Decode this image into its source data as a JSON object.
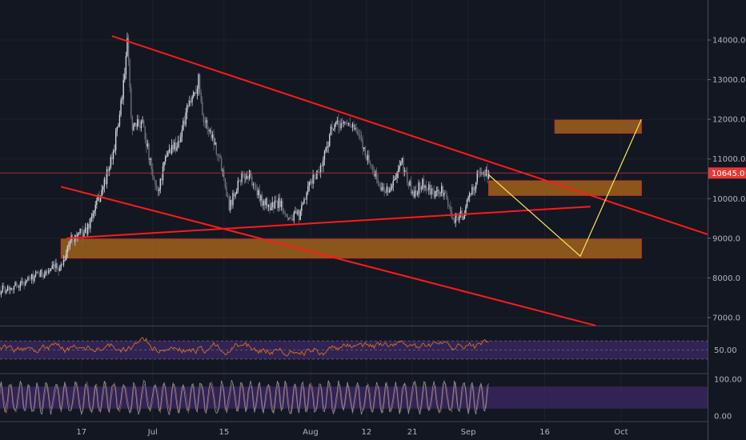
{
  "chart_data": {
    "type": "candlestick",
    "symbol_title": "",
    "colors": {
      "background": "#131722",
      "grid": "#1e222d",
      "candle_up": "#d1d4dc",
      "candle_down": "#6b6f7a",
      "trendline": "#ff1a1a",
      "projection": "#f5e663",
      "zone_fill": "#a0621a",
      "zone_border": "#c0392b",
      "price_line": "#b23b3b",
      "price_tag": "#e53935",
      "rsi_line": "#d86d20",
      "rsi_band": "#3c2a66",
      "stoch_line": "#8e8fb0",
      "stoch_band": "#3c2a66"
    },
    "main_pane": {
      "y_range": [
        6800,
        14700
      ],
      "y_ticks": [
        {
          "value": 7000,
          "label": "7000.0"
        },
        {
          "value": 8000,
          "label": "8000.0"
        },
        {
          "value": 9000,
          "label": "9000.0"
        },
        {
          "value": 10000,
          "label": "10000.0"
        },
        {
          "value": 11000,
          "label": "11000.0"
        },
        {
          "value": 12000,
          "label": "12000.0"
        },
        {
          "value": 13000,
          "label": "13000.0"
        },
        {
          "value": 14000,
          "label": "14000.0"
        }
      ],
      "current_price": {
        "value": 10645,
        "label": "10645.0"
      },
      "zones": [
        {
          "x_start": "2019-09-18",
          "x_end": "2019-10-05",
          "y_low": 11650,
          "y_high": 11980
        },
        {
          "x_start": "2019-09-05",
          "x_end": "2019-10-05",
          "y_low": 10080,
          "y_high": 10450
        },
        {
          "x_start": "2019-06-13",
          "x_end": "2019-10-05",
          "y_low": 8500,
          "y_high": 8980
        }
      ],
      "trendlines": [
        {
          "x1": "2019-06-23",
          "y1": 14100,
          "x2": "2019-10-18",
          "y2": 9100
        },
        {
          "x1": "2019-06-14",
          "y1": 9000,
          "x2": "2019-09-25",
          "y2": 9800
        },
        {
          "x1": "2019-06-13",
          "y1": 10300,
          "x2": "2019-09-26",
          "y2": 6800
        }
      ],
      "projection_path": [
        {
          "x": "2019-09-05",
          "y": 10600
        },
        {
          "x": "2019-09-23",
          "y": 8550
        },
        {
          "x": "2019-10-05",
          "y": 12000
        }
      ],
      "price_path": [
        {
          "x": "2019-06-01",
          "y": 7700
        },
        {
          "x": "2019-06-05",
          "y": 7850
        },
        {
          "x": "2019-06-09",
          "y": 8100
        },
        {
          "x": "2019-06-13",
          "y": 8300
        },
        {
          "x": "2019-06-15",
          "y": 9000
        },
        {
          "x": "2019-06-18",
          "y": 9200
        },
        {
          "x": "2019-06-21",
          "y": 10200
        },
        {
          "x": "2019-06-23",
          "y": 11000
        },
        {
          "x": "2019-06-25",
          "y": 12500
        },
        {
          "x": "2019-06-26",
          "y": 13900
        },
        {
          "x": "2019-06-27",
          "y": 11700
        },
        {
          "x": "2019-06-29",
          "y": 12000
        },
        {
          "x": "2019-07-01",
          "y": 10500
        },
        {
          "x": "2019-07-02",
          "y": 10200
        },
        {
          "x": "2019-07-04",
          "y": 11200
        },
        {
          "x": "2019-07-06",
          "y": 11400
        },
        {
          "x": "2019-07-08",
          "y": 12300
        },
        {
          "x": "2019-07-10",
          "y": 13000
        },
        {
          "x": "2019-07-11",
          "y": 12000
        },
        {
          "x": "2019-07-13",
          "y": 11500
        },
        {
          "x": "2019-07-15",
          "y": 10600
        },
        {
          "x": "2019-07-16",
          "y": 9800
        },
        {
          "x": "2019-07-18",
          "y": 10500
        },
        {
          "x": "2019-07-20",
          "y": 10600
        },
        {
          "x": "2019-07-22",
          "y": 10000
        },
        {
          "x": "2019-07-24",
          "y": 9800
        },
        {
          "x": "2019-07-26",
          "y": 9900
        },
        {
          "x": "2019-07-28",
          "y": 9500
        },
        {
          "x": "2019-07-30",
          "y": 9600
        },
        {
          "x": "2019-08-01",
          "y": 10400
        },
        {
          "x": "2019-08-03",
          "y": 10800
        },
        {
          "x": "2019-08-05",
          "y": 11700
        },
        {
          "x": "2019-08-07",
          "y": 11900
        },
        {
          "x": "2019-08-09",
          "y": 11900
        },
        {
          "x": "2019-08-11",
          "y": 11400
        },
        {
          "x": "2019-08-13",
          "y": 10800
        },
        {
          "x": "2019-08-15",
          "y": 10200
        },
        {
          "x": "2019-08-17",
          "y": 10300
        },
        {
          "x": "2019-08-19",
          "y": 10900
        },
        {
          "x": "2019-08-21",
          "y": 10100
        },
        {
          "x": "2019-08-23",
          "y": 10400
        },
        {
          "x": "2019-08-25",
          "y": 10100
        },
        {
          "x": "2019-08-27",
          "y": 10200
        },
        {
          "x": "2019-08-29",
          "y": 9500
        },
        {
          "x": "2019-08-31",
          "y": 9600
        },
        {
          "x": "2019-09-02",
          "y": 10300
        },
        {
          "x": "2019-09-03",
          "y": 10650
        },
        {
          "x": "2019-09-05",
          "y": 10645
        }
      ]
    },
    "rsi_pane": {
      "y_range": [
        0,
        100
      ],
      "band": [
        30,
        70
      ],
      "ticks": [
        {
          "value": 50,
          "label": "50.00"
        }
      ]
    },
    "stoch_pane": {
      "y_range": [
        0,
        100
      ],
      "band": [
        20,
        80
      ],
      "ticks": [
        {
          "value": 100,
          "label": "100.00"
        },
        {
          "value": 0,
          "label": "0.00"
        }
      ]
    },
    "x_range": [
      "2019-06-01",
      "2019-10-18"
    ],
    "x_ticks": [
      {
        "date": "2019-06-17",
        "label": "17"
      },
      {
        "date": "2019-07-01",
        "label": "Jul"
      },
      {
        "date": "2019-07-15",
        "label": "15"
      },
      {
        "date": "2019-08-01",
        "label": "Aug"
      },
      {
        "date": "2019-08-12",
        "label": "12"
      },
      {
        "date": "2019-08-21",
        "label": "21"
      },
      {
        "date": "2019-09-01",
        "label": "Sep"
      },
      {
        "date": "2019-09-16",
        "label": "16"
      },
      {
        "date": "2019-10-01",
        "label": "Oct"
      }
    ]
  }
}
